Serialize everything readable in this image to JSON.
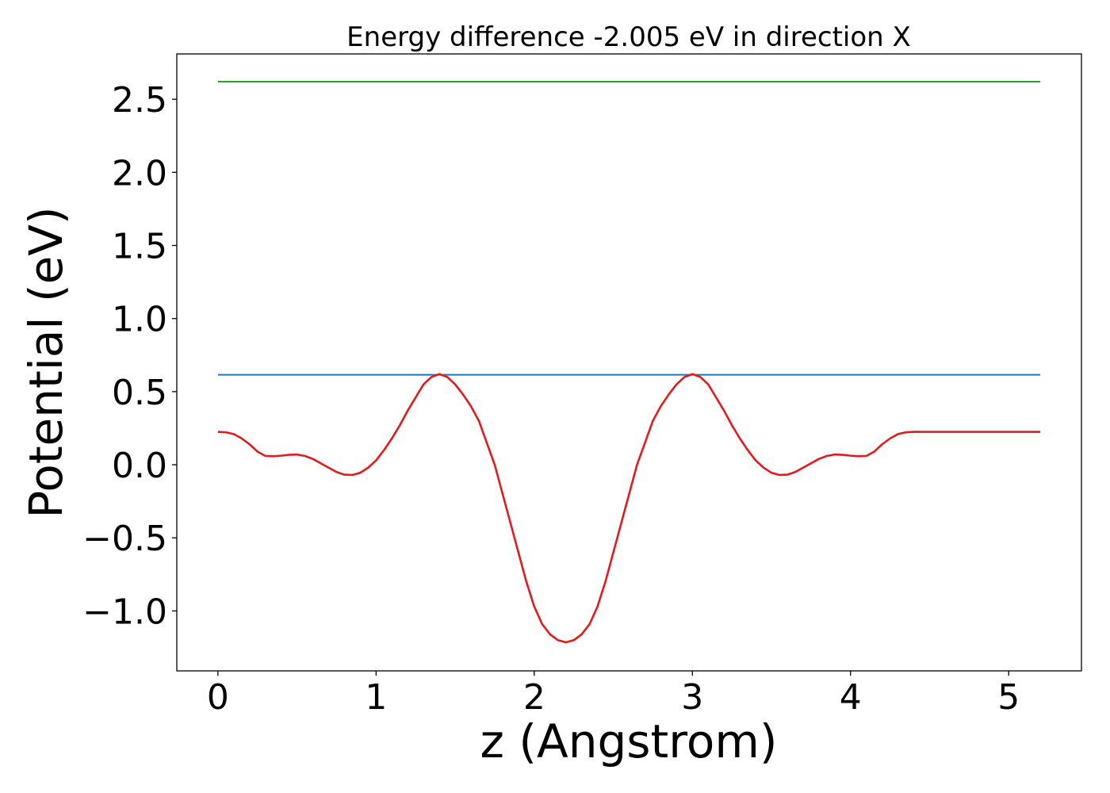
{
  "chart_data": {
    "type": "line",
    "title": "Energy difference -2.005 eV in direction X",
    "xlabel": "z (Angstrom)",
    "ylabel": "Potential (eV)",
    "xlim": [
      -0.26,
      5.46
    ],
    "ylim": [
      -1.41,
      2.81
    ],
    "xticks": [
      0,
      1,
      2,
      3,
      4,
      5
    ],
    "xtick_labels": [
      "0",
      "1",
      "2",
      "3",
      "4",
      "5"
    ],
    "yticks": [
      -1.0,
      -0.5,
      0.0,
      0.5,
      1.0,
      1.5,
      2.0,
      2.5
    ],
    "ytick_labels": [
      "−1.0",
      "−0.5",
      "0.0",
      "0.5",
      "1.0",
      "1.5",
      "2.0",
      "2.5"
    ],
    "grid": false,
    "legend": "none",
    "series": [
      {
        "color": "#2ca02c",
        "x": [
          0,
          5.2
        ],
        "y": [
          2.62,
          2.62
        ]
      },
      {
        "color": "#1f77b4",
        "x": [
          0,
          5.2
        ],
        "y": [
          0.615,
          0.615
        ]
      },
      {
        "color": "#e31a1c",
        "x": [
          0,
          0.05,
          0.1,
          0.15,
          0.2,
          0.25,
          0.3,
          0.35,
          0.4,
          0.45,
          0.5,
          0.55,
          0.6,
          0.65,
          0.7,
          0.75,
          0.8,
          0.85,
          0.9,
          0.95,
          1.0,
          1.05,
          1.1,
          1.15,
          1.2,
          1.25,
          1.3,
          1.35,
          1.4,
          1.45,
          1.5,
          1.55,
          1.6,
          1.65,
          1.7,
          1.75,
          1.8,
          1.85,
          1.9,
          1.95,
          2.0,
          2.05,
          2.1,
          2.15,
          2.2,
          2.25,
          2.3,
          2.35,
          2.4,
          2.45,
          2.5,
          2.55,
          2.6,
          2.65,
          2.7,
          2.75,
          2.8,
          2.85,
          2.9,
          2.95,
          3.0,
          3.05,
          3.1,
          3.15,
          3.2,
          3.25,
          3.3,
          3.35,
          3.4,
          3.45,
          3.5,
          3.55,
          3.6,
          3.65,
          3.7,
          3.75,
          3.8,
          3.85,
          3.9,
          3.95,
          4.0,
          4.05,
          4.1,
          4.15,
          4.2,
          4.25,
          4.3,
          4.35,
          4.4,
          4.45,
          4.5,
          4.55,
          4.6,
          4.65,
          4.7,
          4.75,
          4.8,
          4.85,
          4.9,
          4.95,
          5.0,
          5.05,
          5.1,
          5.15,
          5.2
        ],
        "y": [
          0.225,
          0.222,
          0.21,
          0.18,
          0.14,
          0.09,
          0.06,
          0.058,
          0.062,
          0.068,
          0.07,
          0.06,
          0.04,
          0.01,
          -0.02,
          -0.05,
          -0.068,
          -0.07,
          -0.055,
          -0.02,
          0.03,
          0.1,
          0.18,
          0.27,
          0.37,
          0.46,
          0.55,
          0.6,
          0.62,
          0.6,
          0.55,
          0.48,
          0.4,
          0.3,
          0.15,
          0.0,
          -0.2,
          -0.4,
          -0.6,
          -0.8,
          -0.97,
          -1.09,
          -1.16,
          -1.2,
          -1.215,
          -1.2,
          -1.16,
          -1.09,
          -0.97,
          -0.8,
          -0.6,
          -0.4,
          -0.2,
          0.0,
          0.15,
          0.3,
          0.4,
          0.48,
          0.55,
          0.6,
          0.62,
          0.6,
          0.55,
          0.46,
          0.37,
          0.27,
          0.18,
          0.1,
          0.03,
          -0.02,
          -0.055,
          -0.07,
          -0.068,
          -0.05,
          -0.02,
          0.01,
          0.04,
          0.06,
          0.07,
          0.068,
          0.062,
          0.058,
          0.06,
          0.09,
          0.14,
          0.18,
          0.21,
          0.222,
          0.225,
          0.225,
          0.225,
          0.225,
          0.225,
          0.225,
          0.225,
          0.225,
          0.225,
          0.225,
          0.225,
          0.225,
          0.225,
          0.225,
          0.225,
          0.225,
          0.225
        ]
      }
    ]
  }
}
